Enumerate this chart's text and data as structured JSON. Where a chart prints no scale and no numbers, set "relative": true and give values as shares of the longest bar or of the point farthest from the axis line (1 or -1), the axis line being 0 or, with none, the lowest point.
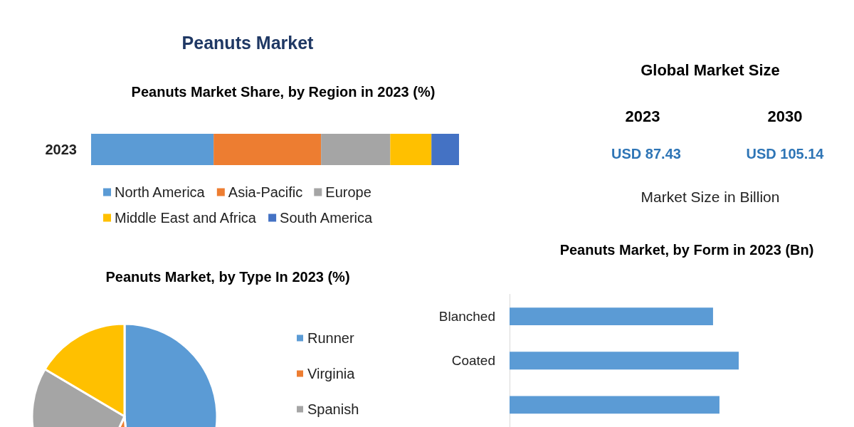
{
  "chart_data": [
    {
      "type": "bar",
      "title": "Peanuts Market",
      "subtitle": "Peanuts Market Share, by Region in 2023 (%)",
      "categories": [
        "2023"
      ],
      "orientation": "horizontal",
      "stacked": true,
      "relative": true,
      "legend": "bottom",
      "series": [
        {
          "name": "North America",
          "color": "#5b9bd5",
          "values": [
            0.333
          ]
        },
        {
          "name": "Asia-Pacific",
          "color": "#ed7d31",
          "values": [
            0.292
          ]
        },
        {
          "name": "Europe",
          "color": "#a5a5a5",
          "values": [
            0.188
          ]
        },
        {
          "name": "Middle East and Africa",
          "color": "#ffc000",
          "values": [
            0.112
          ]
        },
        {
          "name": "South America",
          "color": "#4472c4",
          "values": [
            0.075
          ]
        }
      ]
    },
    {
      "type": "other",
      "title": "Global Market Size",
      "annotations": [
        "2023",
        "2030",
        "USD 87.43",
        "USD 105.14",
        "Market Size in Billion"
      ]
    },
    {
      "type": "pie",
      "title": "Peanuts Market, by Type In 2023 (%)",
      "categories": [
        "Runner",
        "Virginia",
        "Spanish",
        null
      ],
      "values": [
        48.6,
        8.3,
        26.6,
        16.5
      ],
      "colors": [
        "#5b9bd5",
        "#ed7d31",
        "#a5a5a5",
        "#ffc000"
      ],
      "legend": "right"
    },
    {
      "type": "bar",
      "title": "Peanuts Market, by Form in 2023 (Bn)",
      "categories": [
        "Blanched",
        "Coated",
        null
      ],
      "orientation": "horizontal",
      "relative": true,
      "series": [
        {
          "color": "#5b9bd5",
          "values": [
            0.888,
            1,
            0.916
          ]
        }
      ]
    }
  ]
}
